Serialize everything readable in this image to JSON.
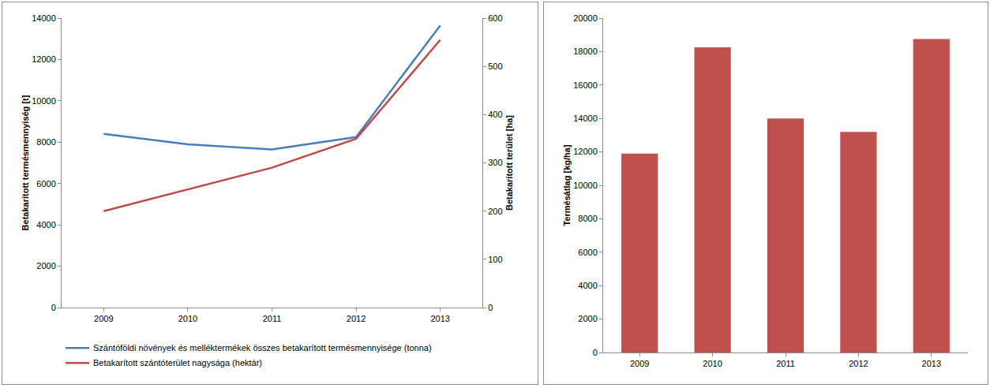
{
  "chart_data": [
    {
      "type": "line",
      "categories": [
        "2009",
        "2010",
        "2011",
        "2012",
        "2013"
      ],
      "ylabel": "Betakarított termésmennyiség [t]",
      "y2label": "Betakarított terület [ha]",
      "ylim": [
        0,
        14000
      ],
      "yticks": [
        0,
        2000,
        4000,
        6000,
        8000,
        10000,
        12000,
        14000
      ],
      "y2lim": [
        0,
        600
      ],
      "y2ticks": [
        0,
        100,
        200,
        300,
        400,
        500,
        600
      ],
      "grid": false,
      "legend": "bottom",
      "series": [
        {
          "name": "Szántóföldi növények és melléktermékek összes betakarított termésmennyisége (tonna)",
          "color": "#4a7ebb",
          "values": [
            8400,
            7900,
            7650,
            8250,
            13650
          ]
        },
        {
          "name": "Betakarított szántóterület nagysága (hektár)",
          "color": "#be4b48",
          "axis": "y2",
          "values": [
            200,
            245,
            290,
            350,
            555
          ]
        }
      ]
    },
    {
      "type": "bar",
      "categories": [
        "2009",
        "2010",
        "2011",
        "2012",
        "2013"
      ],
      "ylabel": "Termésátlag [kg/ha]",
      "ylim": [
        0,
        20000
      ],
      "yticks": [
        0,
        2000,
        4000,
        6000,
        8000,
        10000,
        12000,
        14000,
        16000,
        18000,
        20000
      ],
      "grid": false,
      "color": "#c0504d",
      "values": [
        11900,
        18250,
        14000,
        13200,
        18750
      ]
    }
  ]
}
